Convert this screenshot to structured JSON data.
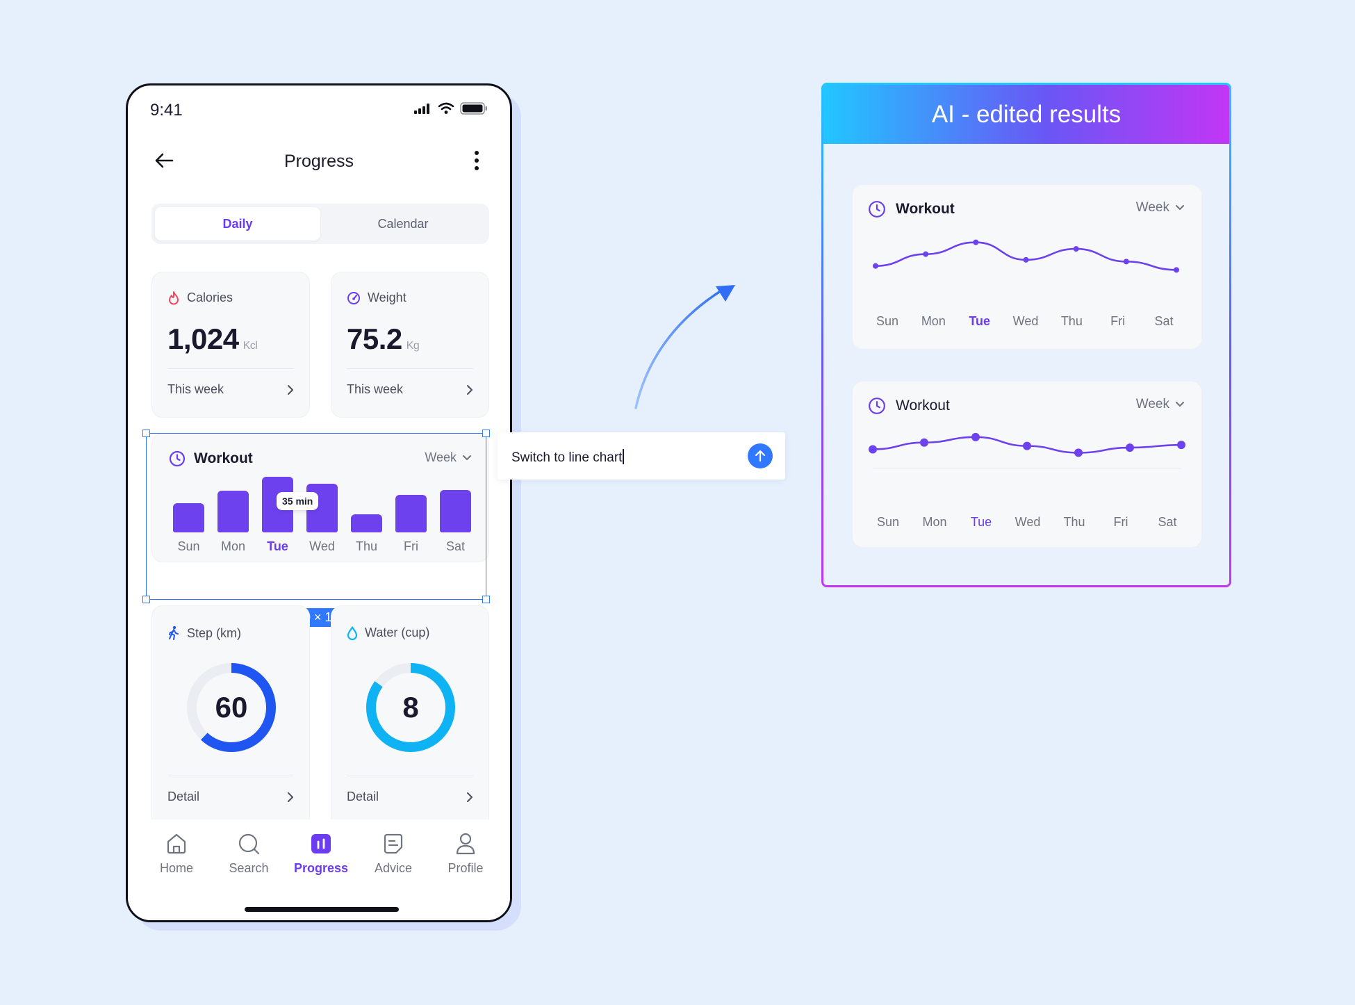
{
  "phone": {
    "status": {
      "time": "9:41"
    },
    "header": {
      "title": "Progress"
    },
    "segmented": {
      "items": [
        "Daily",
        "Calendar"
      ],
      "active": "Daily"
    },
    "calories": {
      "label": "Calories",
      "value": "1,024",
      "unit": "Kcl",
      "footer": "This week",
      "icon": "flame-icon",
      "icon_color": "#f2465f"
    },
    "weight": {
      "label": "Weight",
      "value": "75.2",
      "unit": "Kg",
      "footer": "This week",
      "icon": "gauge-icon",
      "icon_color": "#6c3cf0"
    },
    "workout": {
      "title": "Workout",
      "period": "Week",
      "tooltip": "35 min",
      "days": [
        "Sun",
        "Mon",
        "Tue",
        "Wed",
        "Thu",
        "Fri",
        "Sat"
      ],
      "active_day": "Tue",
      "bar_levels": [
        0.52,
        0.75,
        1.0,
        0.87,
        0.32,
        0.67,
        0.76
      ],
      "bar_color": "#6d42ee"
    },
    "selection_size": "200 × 120",
    "steps": {
      "label": "Step (km)",
      "value": "60",
      "progress": 0.62,
      "footer": "Detail",
      "color": "#1f55f0"
    },
    "water": {
      "label": "Water (cup)",
      "value": "8",
      "progress": 0.85,
      "footer": "Detail",
      "color": "#0fb2f2"
    },
    "tabs": [
      {
        "label": "Home",
        "icon": "home-icon"
      },
      {
        "label": "Search",
        "icon": "search-icon"
      },
      {
        "label": "Progress",
        "icon": "chart-bar-icon"
      },
      {
        "label": "Advice",
        "icon": "document-icon"
      },
      {
        "label": "Profile",
        "icon": "user-icon"
      }
    ],
    "active_tab": "Progress"
  },
  "prompt": {
    "text": "Switch to line chart"
  },
  "ai_panel": {
    "title": "AI - edited results",
    "charts": [
      {
        "title": "Workout",
        "period": "Week",
        "days": [
          "Sun",
          "Mon",
          "Tue",
          "Wed",
          "Thu",
          "Fri",
          "Sat"
        ],
        "active_day": "Tue",
        "values": [
          0.18,
          0.45,
          0.72,
          0.32,
          0.57,
          0.28,
          0.09
        ]
      },
      {
        "title": "Workout",
        "period": "Week",
        "days": [
          "Sun",
          "Mon",
          "Tue",
          "Wed",
          "Thu",
          "Fri",
          "Sat"
        ],
        "active_day": "Tue",
        "values": [
          0.52,
          0.72,
          0.88,
          0.62,
          0.42,
          0.57,
          0.65
        ]
      }
    ],
    "line_color": "#6d42ee",
    "accent": "#6c3cf0"
  }
}
